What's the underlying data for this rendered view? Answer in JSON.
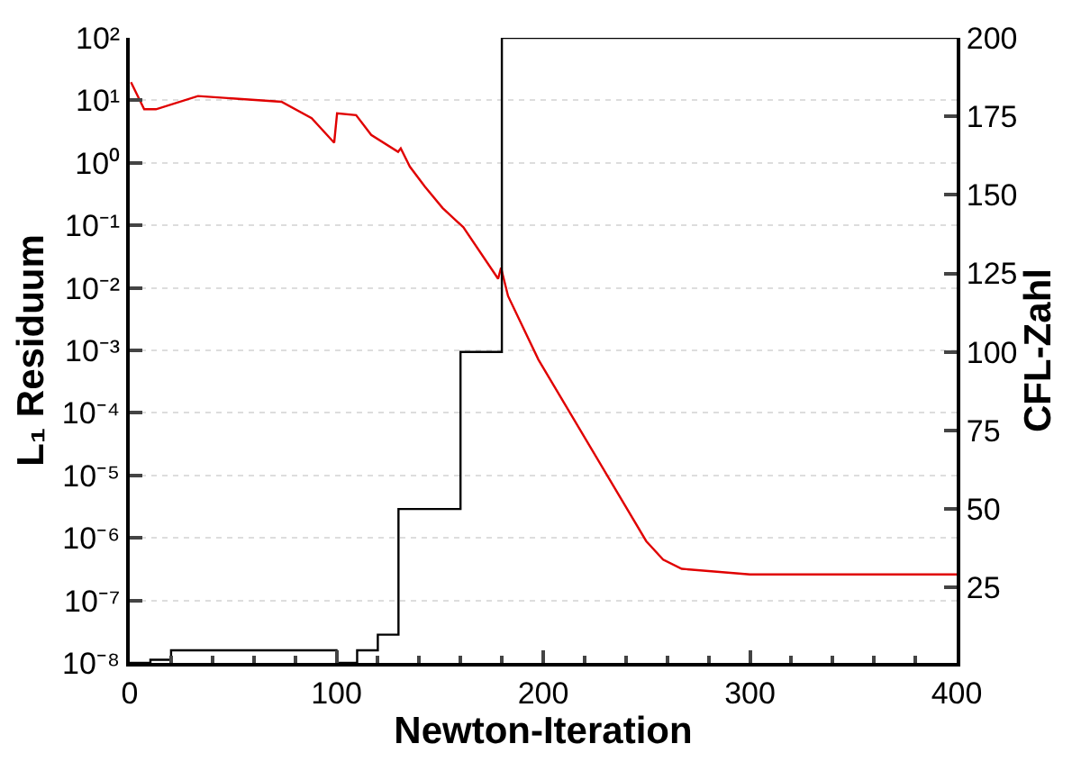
{
  "chart_data": {
    "type": "line",
    "xlabel": "Newton-Iteration",
    "ylabel": "L₁ Residuum",
    "y2label": "CFL-Zahl",
    "log": "y",
    "grid": "y",
    "xlim": [
      0,
      400
    ],
    "xticks": [
      0,
      100,
      200,
      300,
      400
    ],
    "ylim": [
      1e-08,
      100
    ],
    "yticks": [
      {
        "value": 1e-08,
        "label": "10⁻⁸"
      },
      {
        "value": 1e-07,
        "label": "10⁻⁷"
      },
      {
        "value": 1e-06,
        "label": "10⁻⁶"
      },
      {
        "value": 1e-05,
        "label": "10⁻⁵"
      },
      {
        "value": 0.0001,
        "label": "10⁻⁴"
      },
      {
        "value": 0.001,
        "label": "10⁻³"
      },
      {
        "value": 0.01,
        "label": "10⁻²"
      },
      {
        "value": 0.1,
        "label": "10⁻¹"
      },
      {
        "value": 1,
        "label": "10⁰"
      },
      {
        "value": 10,
        "label": "10¹"
      },
      {
        "value": 100,
        "label": "10²"
      }
    ],
    "y2lim": [
      1,
      200
    ],
    "y2ticks": [
      25,
      50,
      75,
      100,
      125,
      150,
      175,
      200
    ],
    "series": [
      {
        "type": "line",
        "color": "#e00000",
        "x": [
          0.6,
          7,
          12.7,
          33,
          73.4,
          88,
          98.9,
          100.3,
          109.5,
          116.8,
          129.8,
          131.1,
          135.5,
          142.7,
          151.3,
          161.4,
          178.2,
          179.6,
          183,
          197.7,
          249.8,
          258,
          267,
          300,
          350,
          400
        ],
        "values": [
          19.5,
          7.2,
          7.2,
          11.7,
          9.5,
          5.2,
          2.1,
          6.2,
          5.8,
          2.8,
          1.5,
          1.7,
          0.87,
          0.42,
          0.19,
          0.093,
          0.014,
          0.021,
          0.0074,
          0.00071,
          8.9e-07,
          4.5e-07,
          3.2e-07,
          2.6e-07,
          2.6e-07,
          2.6e-07
        ]
      },
      {
        "type": "step",
        "axis": "y2",
        "color": "#000000",
        "x": [
          0,
          10,
          20,
          100,
          110,
          120,
          130,
          160,
          180,
          400
        ],
        "values": [
          1,
          2,
          5,
          1,
          5,
          10,
          50,
          100,
          200,
          200
        ]
      }
    ]
  }
}
